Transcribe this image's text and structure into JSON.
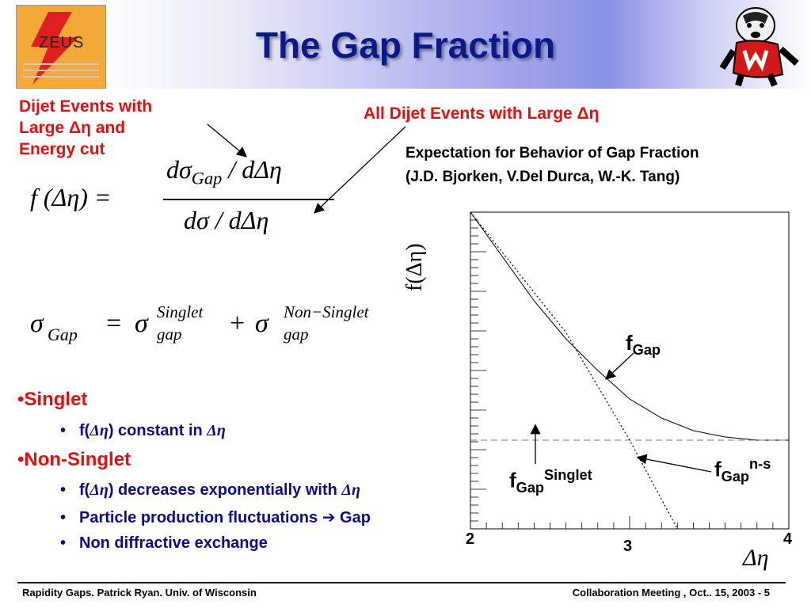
{
  "slide": {
    "title": "The Gap Fraction",
    "logo_left_text": "ZEUS",
    "annotations": {
      "dijet_large_eta_energy": [
        "Dijet Events with",
        "Large Δη and",
        "Energy cut"
      ],
      "all_dijet_large_eta": "All Dijet Events with Large Δη",
      "expectation_line1": "Expectation for Behavior of Gap Fraction",
      "expectation_line2": "(J.D. Bjorken, V.Del Durca, W.-K. Tang)"
    },
    "formula1": {
      "lhs": "f (Δη) =",
      "numerator_d": "dσ",
      "numerator_sub": "Gap",
      "numerator_tail": "/ dΔη",
      "denominator": "dσ / dΔη"
    },
    "formula2": {
      "sigma": "σ",
      "sub_gap_cap": "Gap",
      "equals": "=",
      "plus": "+",
      "sup_singlet": "Singlet",
      "sub_gap": "gap",
      "sup_nonsinglet": "Non−Singlet"
    },
    "bullets": [
      {
        "label": "Singlet",
        "level": 1
      },
      {
        "prefix": "f(",
        "delta_eta": "Δη",
        "mid": ") constant in ",
        "delta_eta2": "Δη",
        "level": 2
      },
      {
        "label": "Non-Singlet",
        "level": 1
      },
      {
        "prefix": "f(",
        "delta_eta": "Δη",
        "mid": ") decreases exponentially with ",
        "delta_eta2": "Δη",
        "level": 2
      },
      {
        "text_a": "Particle production fluctuations ",
        "arrow": "➔",
        "text_b": " Gap",
        "level": 2
      },
      {
        "text": "Non diffractive exchange",
        "level": 2
      }
    ],
    "footer_left": "Rapidity Gaps. Patrick Ryan. Univ. of Wisconsin",
    "footer_right": "Collaboration Meeting , Oct.. 15, 2003 - 5"
  },
  "chart_data": {
    "type": "line",
    "ylabel": "f(Δη)",
    "xlabel": "Δη",
    "x_tick_labels": [
      "2",
      "3",
      "4"
    ],
    "xlim": [
      2,
      4
    ],
    "series": [
      {
        "name": "fGap",
        "style": "solid",
        "x": [
          2.0,
          2.2,
          2.4,
          2.6,
          2.8,
          3.0,
          3.2,
          3.4,
          3.6,
          3.8,
          4.0
        ],
        "y": [
          1.0,
          0.86,
          0.72,
          0.6,
          0.5,
          0.41,
          0.35,
          0.31,
          0.29,
          0.28,
          0.28
        ]
      },
      {
        "name": "fGap Singlet",
        "style": "dashed",
        "x": [
          2.0,
          4.0
        ],
        "y": [
          0.28,
          0.28
        ]
      },
      {
        "name": "fGap n-s",
        "style": "dotted",
        "x": [
          2.0,
          2.6,
          3.0,
          3.3
        ],
        "y": [
          1.0,
          0.62,
          0.28,
          0.0
        ]
      }
    ],
    "labels": {
      "f_gap_main": "f",
      "f_gap_sub": "Gap",
      "f_singlet_main": "f",
      "f_singlet_sub": "Gap",
      "f_singlet_sup": "Singlet",
      "f_ns_main": "f",
      "f_ns_sub": "Gap",
      "f_ns_sup": "n-s"
    }
  }
}
